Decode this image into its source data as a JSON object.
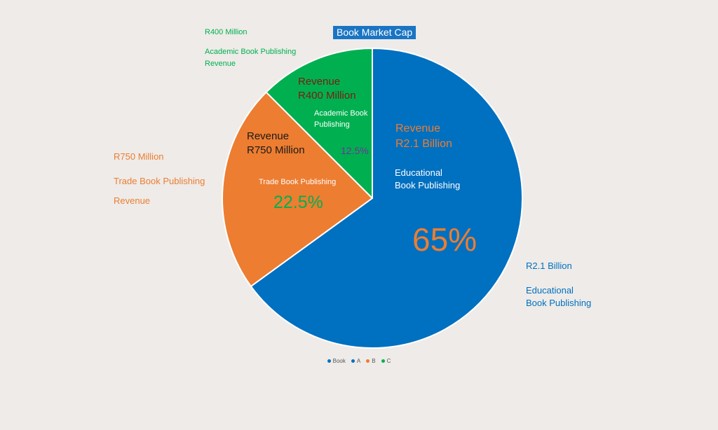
{
  "colors": {
    "background": "#eeebe8",
    "blue": "#0070c0",
    "orange": "#ed7d31",
    "green": "#00b050",
    "dark_red": "#7b1e0e",
    "purple": "#7030a0"
  },
  "chart_data": {
    "type": "pie",
    "title": "Book Market Cap",
    "slices": [
      {
        "category": "Educational Book Publishing",
        "value": 65,
        "label": "65%",
        "revenue": "R2.1 Billion",
        "color": "#0070c0"
      },
      {
        "category": "Trade Book Publishing",
        "value": 22.5,
        "label": "22.5%",
        "revenue": "R750 Million",
        "color": "#ed7d31"
      },
      {
        "category": "Academic Book Publishing",
        "value": 12.5,
        "label": "12.5%",
        "revenue": "R400 Million",
        "color": "#00b050"
      }
    ],
    "legend": {
      "position": "bottom",
      "entries": [
        {
          "name": "Book",
          "color": "#0070c0"
        },
        {
          "name": "A",
          "color": "#0070c0"
        },
        {
          "name": "B",
          "color": "#ed7d31"
        },
        {
          "name": "C",
          "color": "#00b050"
        }
      ]
    }
  },
  "annotations": {
    "edu_in": {
      "rev_label": "Revenue",
      "rev_value": "R2.1 Billion",
      "name_line1": "Educational",
      "name_line2": "Book Publishing"
    },
    "trade_in": {
      "rev_label": "Revenue",
      "rev_value": "R750 Million",
      "name": "Trade Book Publishing"
    },
    "acad_in": {
      "rev_label": "Revenue",
      "rev_value": "R400 Million",
      "name_line1": "Academic Book",
      "name_line2": "Publishing"
    },
    "acad_out": {
      "value": "R400 Million",
      "name": "Academic Book Publishing",
      "suffix": "Revenue"
    },
    "trade_out": {
      "value": "R750 Million",
      "name": "Trade Book Publishing",
      "suffix": "Revenue"
    },
    "edu_out": {
      "value": "R2.1 Billion",
      "name_line1": "Educational",
      "name_line2": "Book Publishing"
    }
  }
}
